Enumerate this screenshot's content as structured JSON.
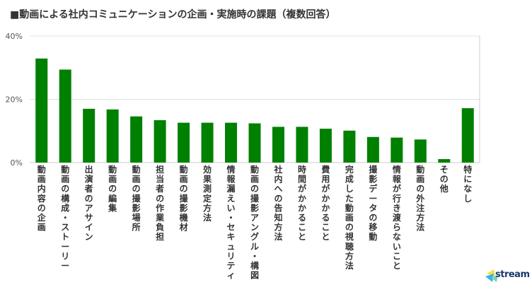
{
  "chart_data": {
    "type": "bar",
    "title": "■動画による社内コミュニケーションの企画・実施時の課題（複数回答）",
    "categories": [
      "動画内容の企画",
      "動画の構成・ストーリー",
      "出演者のアサイン",
      "動画の編集",
      "動画の撮影場所",
      "担当者の作業負担",
      "動画の撮影機材",
      "効果測定方法",
      "情報漏えい・セキュリティ",
      "動画の撮影アングル・構図",
      "社内への告知方法",
      "時間がかかること",
      "費用がかかること",
      "完成した動画の視聴方法",
      "撮影データの移動",
      "情報が行き渡らないこと",
      "動画の外注方法",
      "その他",
      "特になし"
    ],
    "values": [
      32.9,
      29.4,
      17.0,
      16.8,
      14.6,
      13.4,
      12.6,
      12.6,
      12.6,
      12.4,
      11.3,
      11.3,
      10.7,
      10.1,
      8.1,
      7.9,
      7.3,
      1.1,
      17.2
    ],
    "unit": "%",
    "ylim": [
      0,
      40
    ],
    "yticks": [
      0,
      20,
      40
    ],
    "ytick_labels": [
      "0%",
      "20%",
      "40%"
    ],
    "grid": true,
    "bar_color": "#008000",
    "grid_color": "#e0e0e0",
    "axis_color": "#cccccc"
  },
  "brand": {
    "text": "stream",
    "colors": [
      "#f4e04d",
      "#3bb3e3",
      "#7fd1b9"
    ]
  }
}
